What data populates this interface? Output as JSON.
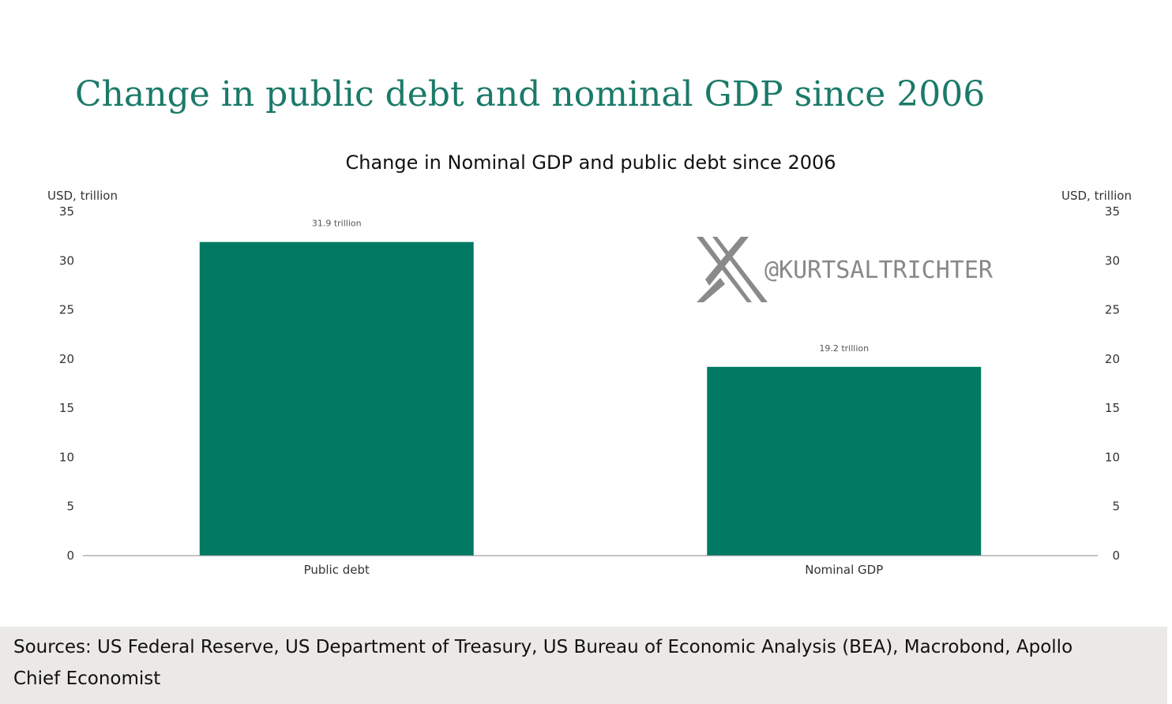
{
  "slide_title": "Change in public debt and nominal GDP since 2006",
  "title_color": "#1a7a68",
  "bar_color": "#007a63",
  "watermark": {
    "icon": "x-logo-icon",
    "handle": "@KURTSALTRICHTER"
  },
  "sources": "Sources: US Federal Reserve, US Department of Treasury, US Bureau of Economic Analysis (BEA), Macrobond, Apollo Chief Economist",
  "chart_data": {
    "type": "bar",
    "title": "Change in Nominal GDP and public debt since 2006",
    "categories": [
      "Public debt",
      "Nominal GDP"
    ],
    "values": [
      31.9,
      19.2
    ],
    "data_labels": [
      "31.9 trillion",
      "19.2 trillion"
    ],
    "ylabel_left": "USD, trillion",
    "ylabel_right": "USD, trillion",
    "ylim": [
      0,
      35
    ],
    "yticks": [
      0,
      5,
      10,
      15,
      20,
      25,
      30,
      35
    ],
    "grid": false,
    "legend": "none"
  }
}
